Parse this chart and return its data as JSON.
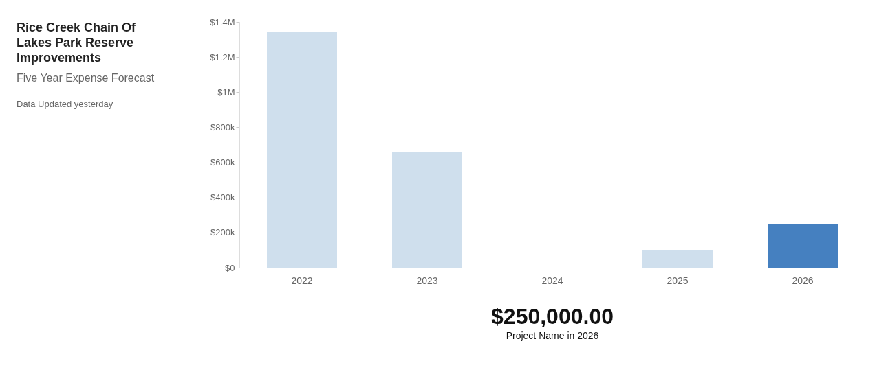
{
  "chart_data": {
    "type": "bar",
    "title": "Rice Creek Chain Of Lakes Park Reserve Improvements",
    "subtitle": "Five Year Expense Forecast",
    "categories": [
      "2022",
      "2023",
      "2024",
      "2025",
      "2026"
    ],
    "values": [
      1345000,
      657000,
      0,
      102000,
      250000
    ],
    "colors": [
      "#cfdfed",
      "#cfdfed",
      "#cfdfed",
      "#cfdfed",
      "#4580c0"
    ],
    "ylim": [
      0,
      1400000
    ],
    "yticks": [
      {
        "value": 0,
        "label": "$0"
      },
      {
        "value": 200000,
        "label": "$200k"
      },
      {
        "value": 400000,
        "label": "$400k"
      },
      {
        "value": 600000,
        "label": "$600k"
      },
      {
        "value": 800000,
        "label": "$800k"
      },
      {
        "value": 1000000,
        "label": "$1M"
      },
      {
        "value": 1200000,
        "label": "$1.2M"
      },
      {
        "value": 1400000,
        "label": "$1.4M"
      }
    ],
    "grid": false,
    "annotations": [
      "Data Updated yesterday",
      "$250,000.00",
      "Project Name in 2026"
    ]
  }
}
